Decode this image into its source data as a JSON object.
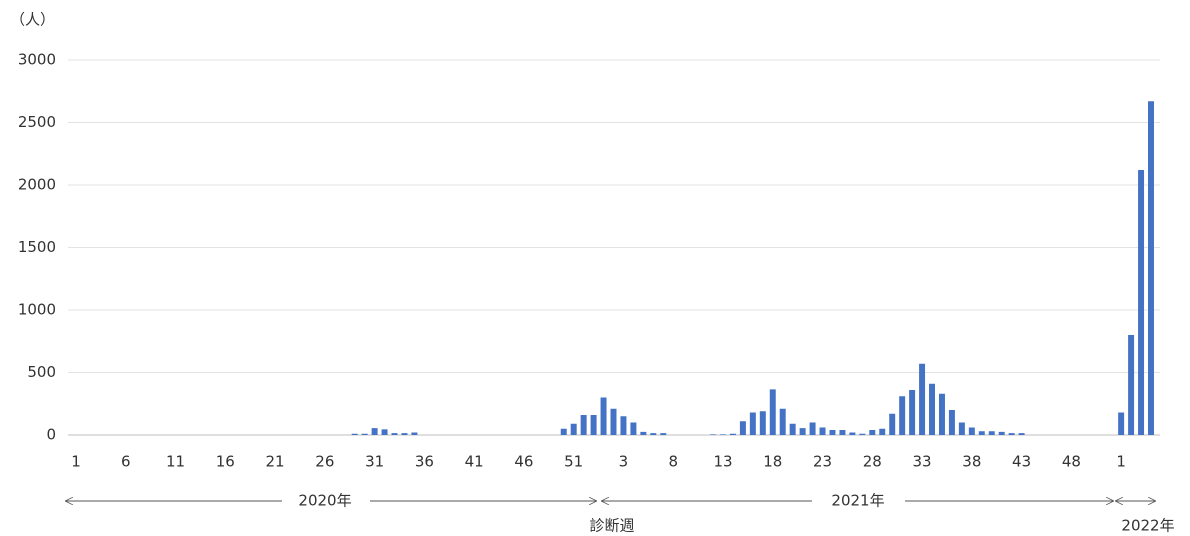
{
  "chart_data": {
    "type": "bar",
    "y_unit": "（人）",
    "x_label": "診断週",
    "period_labels": [
      "2020年",
      "2021年",
      "2022年"
    ],
    "color": "#4472c4",
    "ylim": [
      0,
      3000
    ],
    "yticks": [
      0,
      500,
      1000,
      1500,
      2000,
      2500,
      3000
    ],
    "grid": true,
    "categories": [
      "1",
      null,
      null,
      null,
      null,
      "6",
      null,
      null,
      null,
      null,
      "11",
      null,
      null,
      null,
      null,
      "16",
      null,
      null,
      null,
      null,
      "21",
      null,
      null,
      null,
      null,
      "26",
      null,
      null,
      null,
      null,
      "31",
      null,
      null,
      null,
      null,
      "36",
      null,
      null,
      null,
      null,
      "41",
      null,
      null,
      null,
      null,
      "46",
      null,
      null,
      null,
      null,
      "51",
      null,
      null,
      null,
      null,
      "3",
      null,
      null,
      null,
      null,
      "8",
      null,
      null,
      null,
      null,
      "13",
      null,
      null,
      null,
      null,
      "18",
      null,
      null,
      null,
      null,
      "23",
      null,
      null,
      null,
      null,
      "28",
      null,
      null,
      null,
      null,
      "33",
      null,
      null,
      null,
      null,
      "38",
      null,
      null,
      null,
      null,
      "43",
      null,
      null,
      null,
      null,
      "48",
      null,
      null,
      null,
      null,
      "1",
      null,
      null,
      null
    ],
    "values": [
      0,
      0,
      0,
      0,
      0,
      0,
      0,
      0,
      0,
      0,
      0,
      0,
      0,
      0,
      0,
      0,
      0,
      0,
      0,
      0,
      0,
      0,
      0,
      0,
      0,
      0,
      0,
      0,
      10,
      10,
      55,
      45,
      15,
      15,
      20,
      0,
      0,
      0,
      0,
      0,
      0,
      0,
      0,
      0,
      0,
      0,
      0,
      0,
      0,
      50,
      90,
      160,
      160,
      300,
      210,
      150,
      100,
      25,
      15,
      15,
      0,
      0,
      0,
      0,
      5,
      5,
      10,
      110,
      180,
      190,
      365,
      210,
      90,
      55,
      100,
      60,
      40,
      40,
      20,
      10,
      40,
      50,
      170,
      310,
      360,
      570,
      410,
      330,
      200,
      100,
      60,
      30,
      30,
      25,
      15,
      15,
      0,
      0,
      0,
      0,
      0,
      0,
      0,
      0,
      0,
      180,
      800,
      2120,
      2670
    ]
  }
}
